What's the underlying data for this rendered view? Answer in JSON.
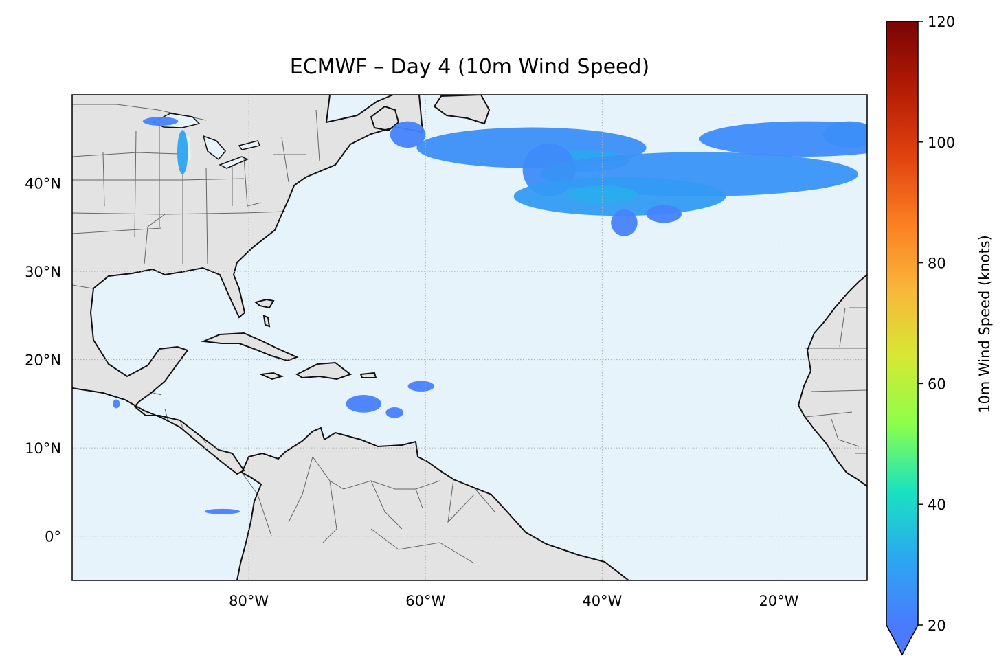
{
  "title": "ECMWF – Day 4 (10m Wind Speed)",
  "colors": {
    "ocean": "#e6f3fb",
    "land": "#e3e3e3",
    "coast": "#111111",
    "border": "#666666",
    "grid": "#aaaaaa",
    "lake": "#e6f3fb"
  },
  "map": {
    "projection": "PlateCarree",
    "lon_range": [
      -100,
      -10
    ],
    "lat_range": [
      -5,
      50
    ],
    "lon_ticks": [
      {
        "value": -80,
        "label": "80°W"
      },
      {
        "value": -60,
        "label": "60°W"
      },
      {
        "value": -40,
        "label": "40°W"
      },
      {
        "value": -20,
        "label": "20°W"
      }
    ],
    "lat_ticks": [
      {
        "value": 0,
        "label": "0°"
      },
      {
        "value": 10,
        "label": "10°N"
      },
      {
        "value": 20,
        "label": "20°N"
      },
      {
        "value": 30,
        "label": "30°N"
      },
      {
        "value": 40,
        "label": "40°N"
      }
    ],
    "gridlines": "dotted"
  },
  "colorbar": {
    "label": "10m Wind Speed (knots)",
    "min": 20,
    "max": 120,
    "extend": "min",
    "ticks": [
      20,
      40,
      60,
      80,
      100,
      120
    ],
    "colormap": "turbo",
    "stops": [
      "#4a7bff",
      "#2aa8f0",
      "#19e3bf",
      "#8cff4a",
      "#d6e833",
      "#f9b63a",
      "#fb7e21",
      "#e0420e",
      "#b21c05",
      "#7a0403"
    ]
  },
  "wind_regions": [
    {
      "lon": -48,
      "lat": 44,
      "dlon": 13,
      "dlat": 2.3,
      "speed": 25
    },
    {
      "lon": -42,
      "lat": 42.5,
      "dlon": 5,
      "dlat": 1.2,
      "speed": 30
    },
    {
      "lon": -46,
      "lat": 41.5,
      "dlon": 3,
      "dlat": 3,
      "speed": 24
    },
    {
      "lon": -29,
      "lat": 41,
      "dlon": 18,
      "dlat": 2.5,
      "speed": 26
    },
    {
      "lon": -38,
      "lat": 38.5,
      "dlon": 12,
      "dlat": 2.2,
      "speed": 28
    },
    {
      "lon": -40,
      "lat": 38.7,
      "dlon": 4,
      "dlat": 1,
      "speed": 32
    },
    {
      "lon": -17,
      "lat": 45,
      "dlon": 12,
      "dlat": 2,
      "speed": 24
    },
    {
      "lon": -12,
      "lat": 45.5,
      "dlon": 3,
      "dlat": 1.5,
      "speed": 25
    },
    {
      "lon": -37.5,
      "lat": 35.5,
      "dlon": 1.5,
      "dlat": 1.5,
      "speed": 22
    },
    {
      "lon": -33,
      "lat": 36.5,
      "dlon": 2,
      "dlat": 1,
      "speed": 22
    },
    {
      "lon": -62,
      "lat": 45.5,
      "dlon": 2,
      "dlat": 1.5,
      "speed": 22
    },
    {
      "lon": -87.5,
      "lat": 43.5,
      "dlon": 0.6,
      "dlat": 2.5,
      "speed": 30
    },
    {
      "lon": -90,
      "lat": 47,
      "dlon": 2,
      "dlat": 0.5,
      "speed": 22
    },
    {
      "lon": -67,
      "lat": 15,
      "dlon": 2,
      "dlat": 1,
      "speed": 21
    },
    {
      "lon": -60.5,
      "lat": 17,
      "dlon": 1.5,
      "dlat": 0.6,
      "speed": 21
    },
    {
      "lon": -63.5,
      "lat": 14,
      "dlon": 1,
      "dlat": 0.6,
      "speed": 21
    },
    {
      "lon": -95,
      "lat": 15,
      "dlon": 0.4,
      "dlat": 0.5,
      "speed": 22
    },
    {
      "lon": -83,
      "lat": 2.8,
      "dlon": 2,
      "dlat": 0.3,
      "speed": 21
    }
  ]
}
